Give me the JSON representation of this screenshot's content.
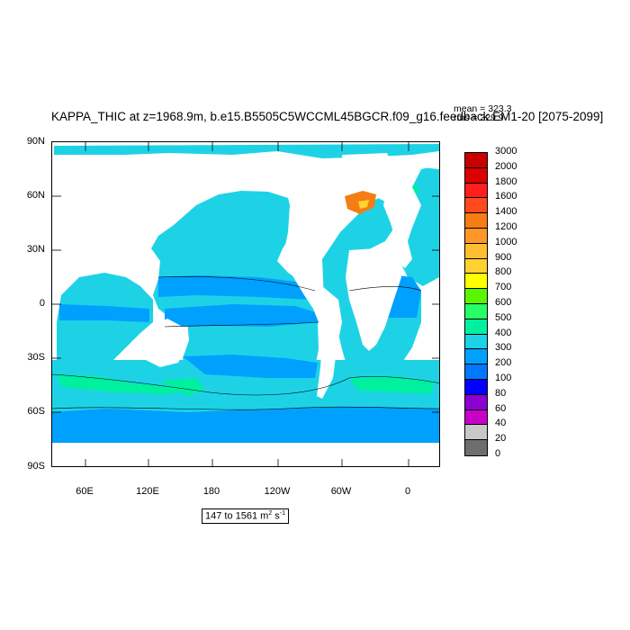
{
  "title": "KAPPA_THIC at z=1968.9m, b.e15.B5505C5WCCML45BGCR.f09_g16.feedback.EM1-20 [2075-2099]",
  "stats": {
    "mean": "mean = 323.3",
    "rms": "rms = 329.9"
  },
  "range_label": {
    "text": "147 to 1561 m",
    "exp1": "2",
    "mid": " s",
    "exp2": "-1"
  },
  "y_ticks": [
    "90N",
    "60N",
    "30N",
    "0",
    "30S",
    "60S",
    "90S"
  ],
  "x_ticks": [
    "60E",
    "120E",
    "180",
    "120W",
    "60W",
    "0"
  ],
  "colorbar": {
    "levels": [
      "3000",
      "2000",
      "1800",
      "1600",
      "1400",
      "1200",
      "1000",
      "900",
      "800",
      "700",
      "600",
      "500",
      "400",
      "300",
      "200",
      "100",
      "80",
      "60",
      "40",
      "20",
      "0"
    ],
    "colors": [
      "#c80000",
      "#dc0000",
      "#ff1e1e",
      "#ff4a1e",
      "#f57d14",
      "#ff9628",
      "#ffbe32",
      "#ffd232",
      "#ffff00",
      "#5af500",
      "#28ff64",
      "#00f0a0",
      "#1ed2e6",
      "#00a0ff",
      "#0078ff",
      "#0000ff",
      "#8c00d2",
      "#c800c8",
      "#c8c8c8",
      "#6e6e6e"
    ]
  },
  "colors": {
    "land": "#ffffff",
    "ocean_main": "#1ed2e6",
    "ocean_low": "#00a0ff",
    "ocean_high": "#00f0a0",
    "peak_orange": "#f57d14"
  }
}
